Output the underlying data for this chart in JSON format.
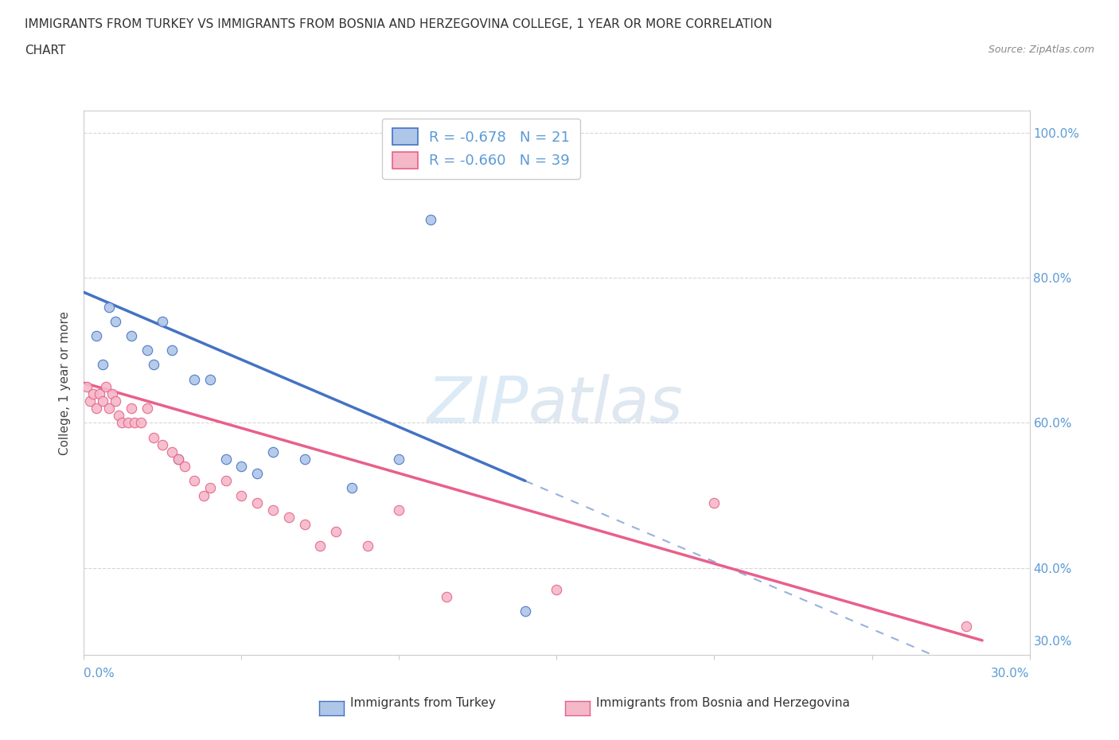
{
  "title_line1": "IMMIGRANTS FROM TURKEY VS IMMIGRANTS FROM BOSNIA AND HERZEGOVINA COLLEGE, 1 YEAR OR MORE CORRELATION",
  "title_line2": "CHART",
  "source": "Source: ZipAtlas.com",
  "ylabel": "College, 1 year or more",
  "x_min": 0.0,
  "x_max": 30.0,
  "y_min": 28.0,
  "y_max": 103.0,
  "ytick_values": [
    40.0,
    60.0,
    80.0,
    100.0
  ],
  "ytick_labels": [
    "40.0%",
    "60.0%",
    "80.0%",
    "100.0%"
  ],
  "right_ytick_values": [
    30.0
  ],
  "right_ytick_labels": [
    "30.0%"
  ],
  "turkey_color": "#aec6e8",
  "turkey_line_color": "#4472c4",
  "turkey_edge_color": "#4472c4",
  "bosnia_color": "#f4b8c8",
  "bosnia_line_color": "#e8608a",
  "bosnia_edge_color": "#e8608a",
  "turkey_R": -0.678,
  "turkey_N": 21,
  "bosnia_R": -0.66,
  "bosnia_N": 39,
  "turkey_x": [
    0.4,
    0.6,
    0.8,
    1.0,
    1.5,
    2.0,
    2.2,
    2.5,
    2.8,
    3.0,
    3.5,
    4.0,
    4.5,
    5.0,
    5.5,
    6.0,
    7.0,
    8.5,
    10.0,
    11.0,
    14.0
  ],
  "turkey_y": [
    72,
    68,
    76,
    74,
    72,
    70,
    68,
    74,
    70,
    55,
    66,
    66,
    55,
    54,
    53,
    56,
    55,
    51,
    55,
    88,
    34
  ],
  "bosnia_x": [
    0.1,
    0.2,
    0.3,
    0.4,
    0.5,
    0.6,
    0.7,
    0.8,
    0.9,
    1.0,
    1.1,
    1.2,
    1.4,
    1.5,
    1.6,
    1.8,
    2.0,
    2.2,
    2.5,
    2.8,
    3.0,
    3.2,
    3.5,
    3.8,
    4.0,
    4.5,
    5.0,
    5.5,
    6.0,
    6.5,
    7.0,
    7.5,
    8.0,
    9.0,
    10.0,
    11.5,
    15.0,
    20.0,
    28.0
  ],
  "bosnia_y": [
    65,
    63,
    64,
    62,
    64,
    63,
    65,
    62,
    64,
    63,
    61,
    60,
    60,
    62,
    60,
    60,
    62,
    58,
    57,
    56,
    55,
    54,
    52,
    50,
    51,
    52,
    50,
    49,
    48,
    47,
    46,
    43,
    45,
    43,
    48,
    36,
    37,
    49,
    32
  ],
  "background_color": "#ffffff",
  "grid_color": "#cccccc",
  "right_axis_color": "#5b9bd5",
  "watermark_zip": "ZIP",
  "watermark_atlas": "atlas",
  "legend_fontsize": 13,
  "title_fontsize": 11,
  "axis_label_fontsize": 11
}
